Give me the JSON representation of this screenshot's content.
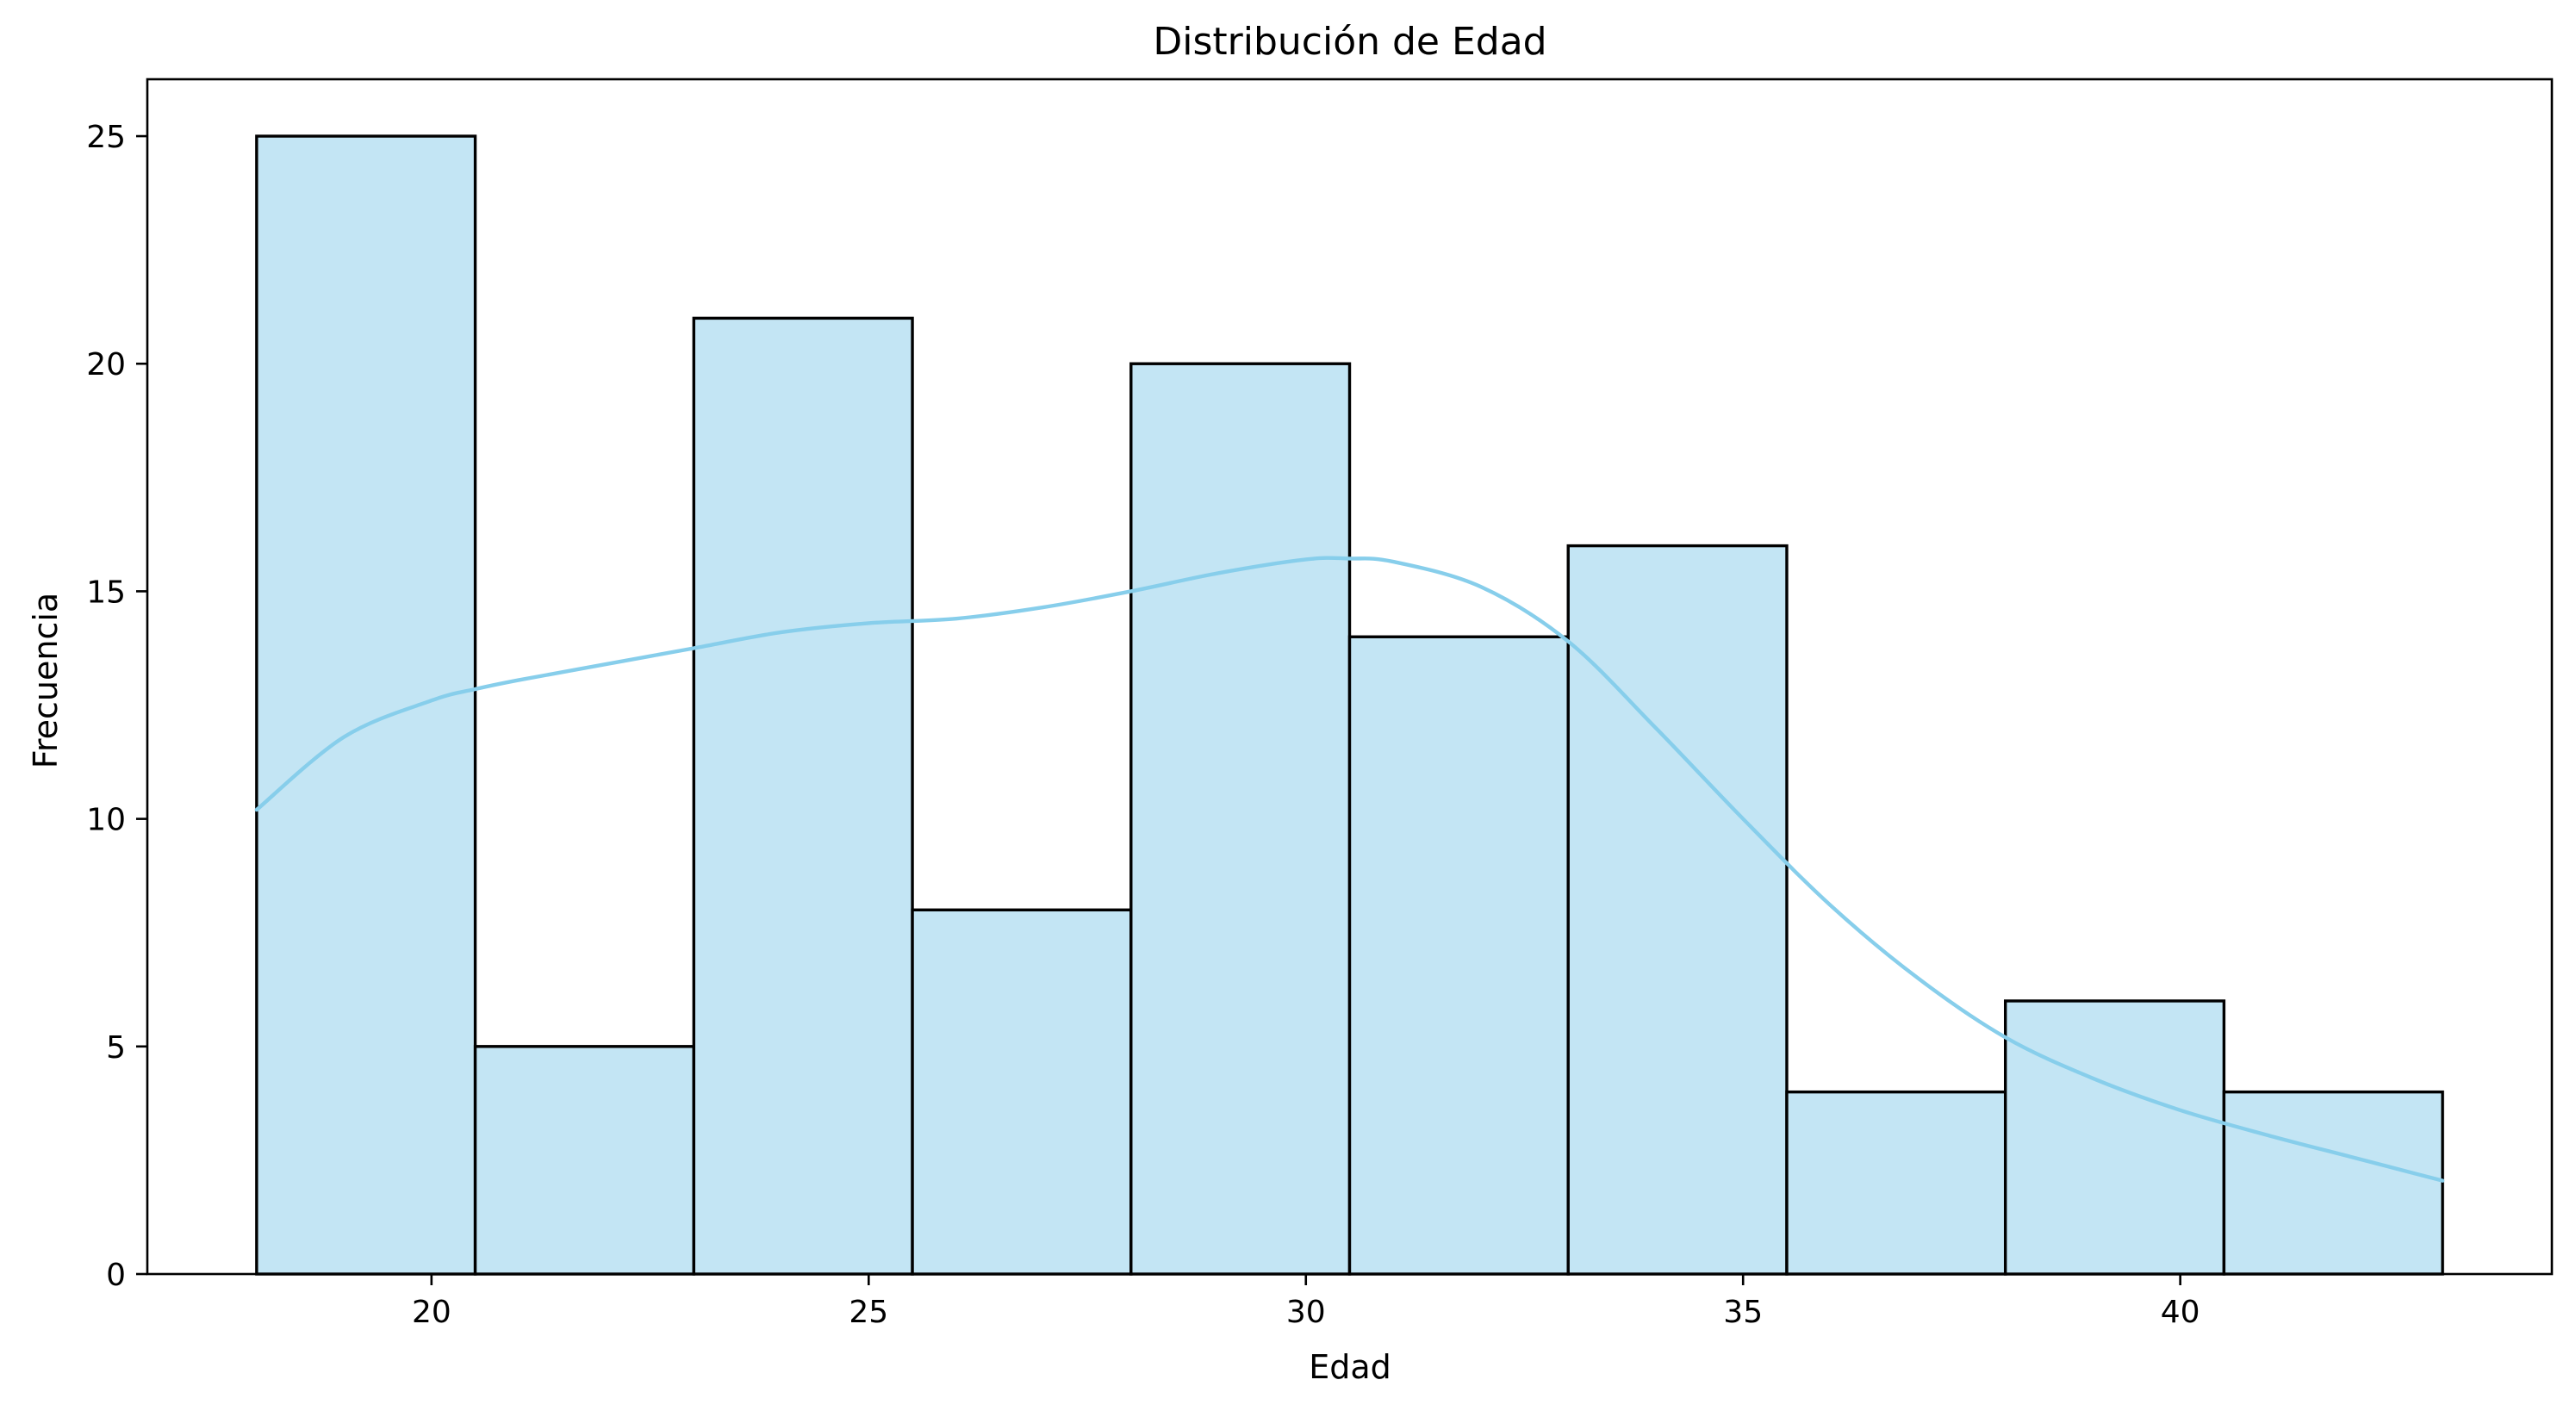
{
  "chart_data": {
    "type": "bar",
    "subtype": "histogram",
    "title": "Distribución de Edad",
    "xlabel": "Edad",
    "ylabel": "Frecuencia",
    "xlim": [
      16.75,
      44.25
    ],
    "ylim": [
      0,
      26.25
    ],
    "xticks": [
      20,
      25,
      30,
      35,
      40
    ],
    "yticks": [
      0,
      5,
      10,
      15,
      20,
      25
    ],
    "bins": [
      {
        "x0": 18.0,
        "x1": 20.5,
        "value": 25
      },
      {
        "x0": 20.5,
        "x1": 23.0,
        "value": 5
      },
      {
        "x0": 23.0,
        "x1": 25.5,
        "value": 21
      },
      {
        "x0": 25.5,
        "x1": 28.0,
        "value": 8
      },
      {
        "x0": 28.0,
        "x1": 30.5,
        "value": 20
      },
      {
        "x0": 30.5,
        "x1": 33.0,
        "value": 14
      },
      {
        "x0": 33.0,
        "x1": 35.5,
        "value": 16
      },
      {
        "x0": 35.5,
        "x1": 38.0,
        "value": 4
      },
      {
        "x0": 38.0,
        "x1": 40.5,
        "value": 6
      },
      {
        "x0": 40.5,
        "x1": 43.0,
        "value": 4
      }
    ],
    "kde": {
      "x": [
        18.0,
        19.0,
        20.0,
        20.5,
        21.0,
        22.0,
        23.0,
        24.0,
        25.0,
        26.0,
        27.0,
        28.0,
        29.0,
        30.0,
        30.5,
        31.0,
        32.0,
        33.0,
        34.0,
        35.0,
        36.0,
        37.0,
        38.0,
        39.0,
        40.0,
        41.0,
        42.0,
        43.0
      ],
      "y": [
        10.2,
        11.8,
        12.6,
        12.85,
        13.05,
        13.4,
        13.75,
        14.1,
        14.3,
        14.4,
        14.65,
        15.0,
        15.4,
        15.7,
        15.72,
        15.65,
        15.1,
        13.9,
        12.0,
        10.0,
        8.1,
        6.5,
        5.2,
        4.3,
        3.6,
        3.05,
        2.55,
        2.05
      ]
    },
    "grid": false,
    "legend": "none",
    "colors": {
      "bar_fill": "#c3e5f4",
      "bar_edge": "#000000",
      "kde_line": "#87ceeb"
    }
  }
}
